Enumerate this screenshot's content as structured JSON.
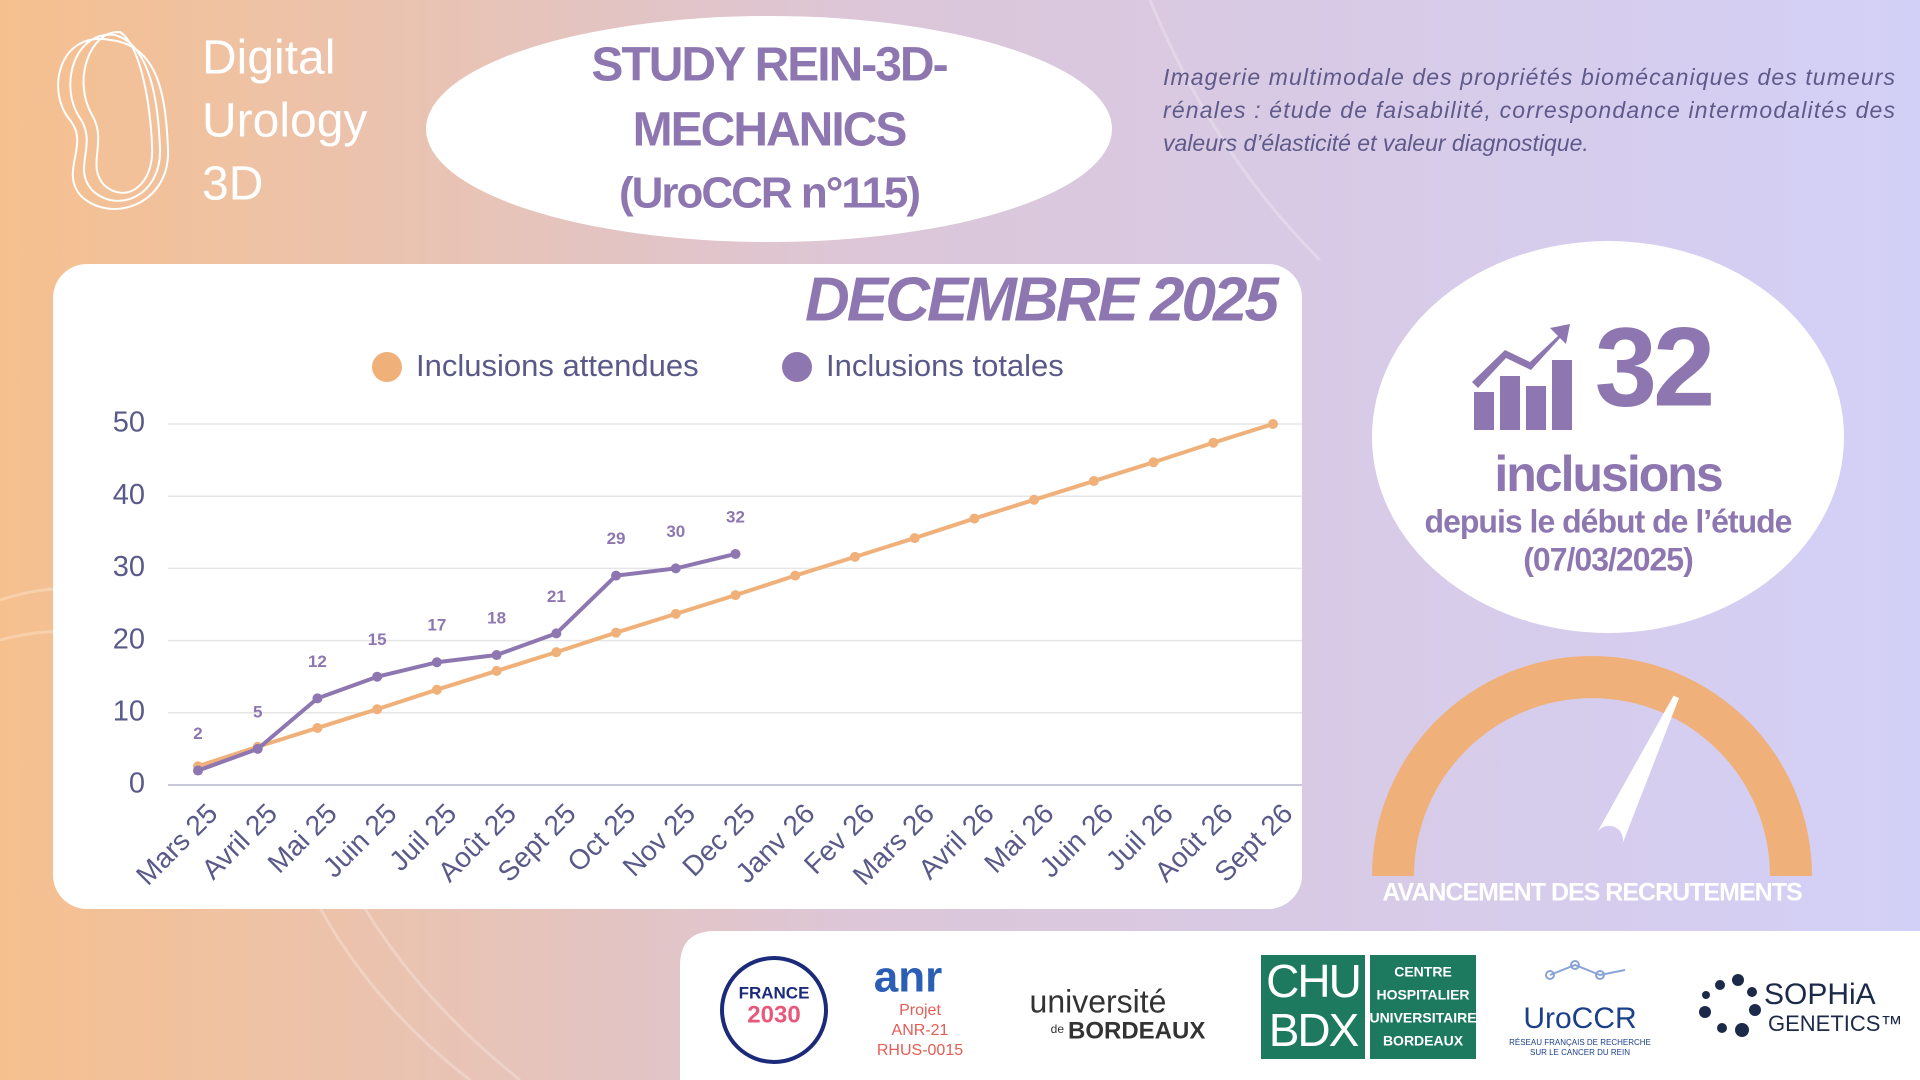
{
  "brand": [
    "Digital",
    "Urology",
    "3D"
  ],
  "header": {
    "title": [
      "STUDY REIN-3D-",
      "MECHANICS",
      "(UroCCR n°115)"
    ],
    "description": [
      "Imagerie multimodale des propriétés biomécaniques des tumeurs",
      "rénales : étude de faisabilité, correspondance intermodalités des",
      "valeurs d’élasticité et valeur diagnostique."
    ]
  },
  "chart_data": {
    "type": "line",
    "title": "DECEMBRE 2025",
    "categories": [
      "Mars 25",
      "Avril 25",
      "Mai 25",
      "Juin 25",
      "Juil 25",
      "Août 25",
      "Sept 25",
      "Oct 25",
      "Nov 25",
      "Dec 25",
      "Janv 26",
      "Fev 26",
      "Mars 26",
      "Avril 26",
      "Mai 26",
      "Juin 26",
      "Juil 26",
      "Août 26",
      "Sept 26"
    ],
    "series": [
      {
        "name": "Inclusions attendues",
        "color": "#f0b07a",
        "values": [
          2.6,
          5.3,
          7.9,
          10.5,
          13.2,
          15.8,
          18.4,
          21.1,
          23.7,
          26.3,
          29.0,
          31.6,
          34.2,
          36.9,
          39.5,
          42.1,
          44.7,
          47.4,
          50
        ]
      },
      {
        "name": "Inclusions totales",
        "color": "#8e77b0",
        "values": [
          2,
          5,
          12,
          15,
          17,
          18,
          21,
          29,
          30,
          32,
          null,
          null,
          null,
          null,
          null,
          null,
          null,
          null,
          null
        ]
      }
    ],
    "ylim": [
      0,
      50
    ],
    "yticks": [
      0,
      10,
      20,
      30,
      40,
      50
    ],
    "grid": true,
    "legend": "top"
  },
  "summary": {
    "count": 32,
    "label": "inclusions",
    "since": "depuis le début de l’étude",
    "date": "(07/03/2025)"
  },
  "gauge": {
    "label": "AVANCEMENT DES RECRUTEMENTS"
  },
  "logos": {
    "france": "FRANCE",
    "france_year": "2030",
    "anr": "anr",
    "anr_project": [
      "Projet",
      "ANR-21",
      "RHUS-0015"
    ],
    "ubx": [
      "université",
      "de",
      "BORDEAUX"
    ],
    "chu": [
      "CHU",
      "BDX"
    ],
    "chu_name": [
      "CENTRE",
      "HOSPITALIER",
      "UNIVERSITAIRE",
      "BORDEAUX"
    ],
    "uroccr": "UroCCR",
    "uroccr_sub": [
      "RÉSEAU FRANÇAIS DE RECHERCHE",
      "SUR LE CANCER DU REIN"
    ],
    "sophia": [
      "SOPHiA",
      "GENETICS™"
    ]
  }
}
